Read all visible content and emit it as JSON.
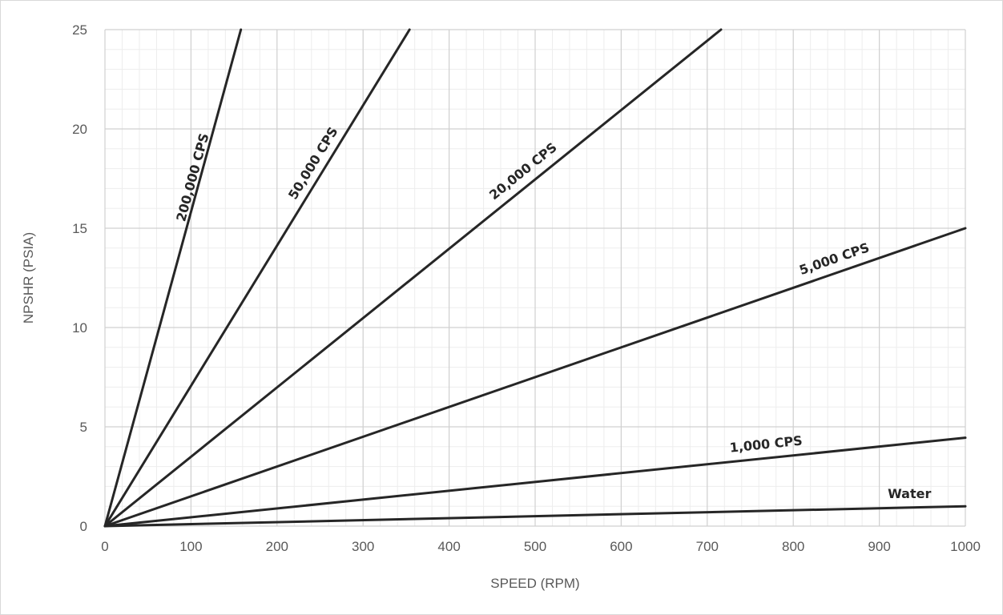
{
  "chart_data": {
    "type": "line",
    "xlabel": "SPEED (RPM)",
    "ylabel": "NPSHR (PSIA)",
    "xlim": [
      0,
      1000
    ],
    "ylim": [
      0,
      25
    ],
    "x_ticks": [
      0,
      100,
      200,
      300,
      400,
      500,
      600,
      700,
      800,
      900,
      1000
    ],
    "y_ticks": [
      0,
      5,
      10,
      15,
      20,
      25
    ],
    "x_minor_step": 20,
    "y_minor_step": 1,
    "grid": true,
    "legend": "none",
    "line_color": "#262626",
    "series": [
      {
        "name": "Water",
        "x": [
          0,
          1000
        ],
        "y": [
          0,
          1.0
        ]
      },
      {
        "name": "1,000 CPS",
        "x": [
          0,
          1000
        ],
        "y": [
          0,
          4.45
        ]
      },
      {
        "name": "5,000 CPS",
        "x": [
          0,
          1000
        ],
        "y": [
          0,
          15.0
        ]
      },
      {
        "name": "20,000 CPS",
        "x": [
          0,
          716
        ],
        "y": [
          0,
          25
        ]
      },
      {
        "name": "50,000 CPS",
        "x": [
          0,
          354
        ],
        "y": [
          0,
          25
        ]
      },
      {
        "name": "200,000 CPS",
        "x": [
          0,
          158
        ],
        "y": [
          0,
          25
        ]
      }
    ]
  }
}
